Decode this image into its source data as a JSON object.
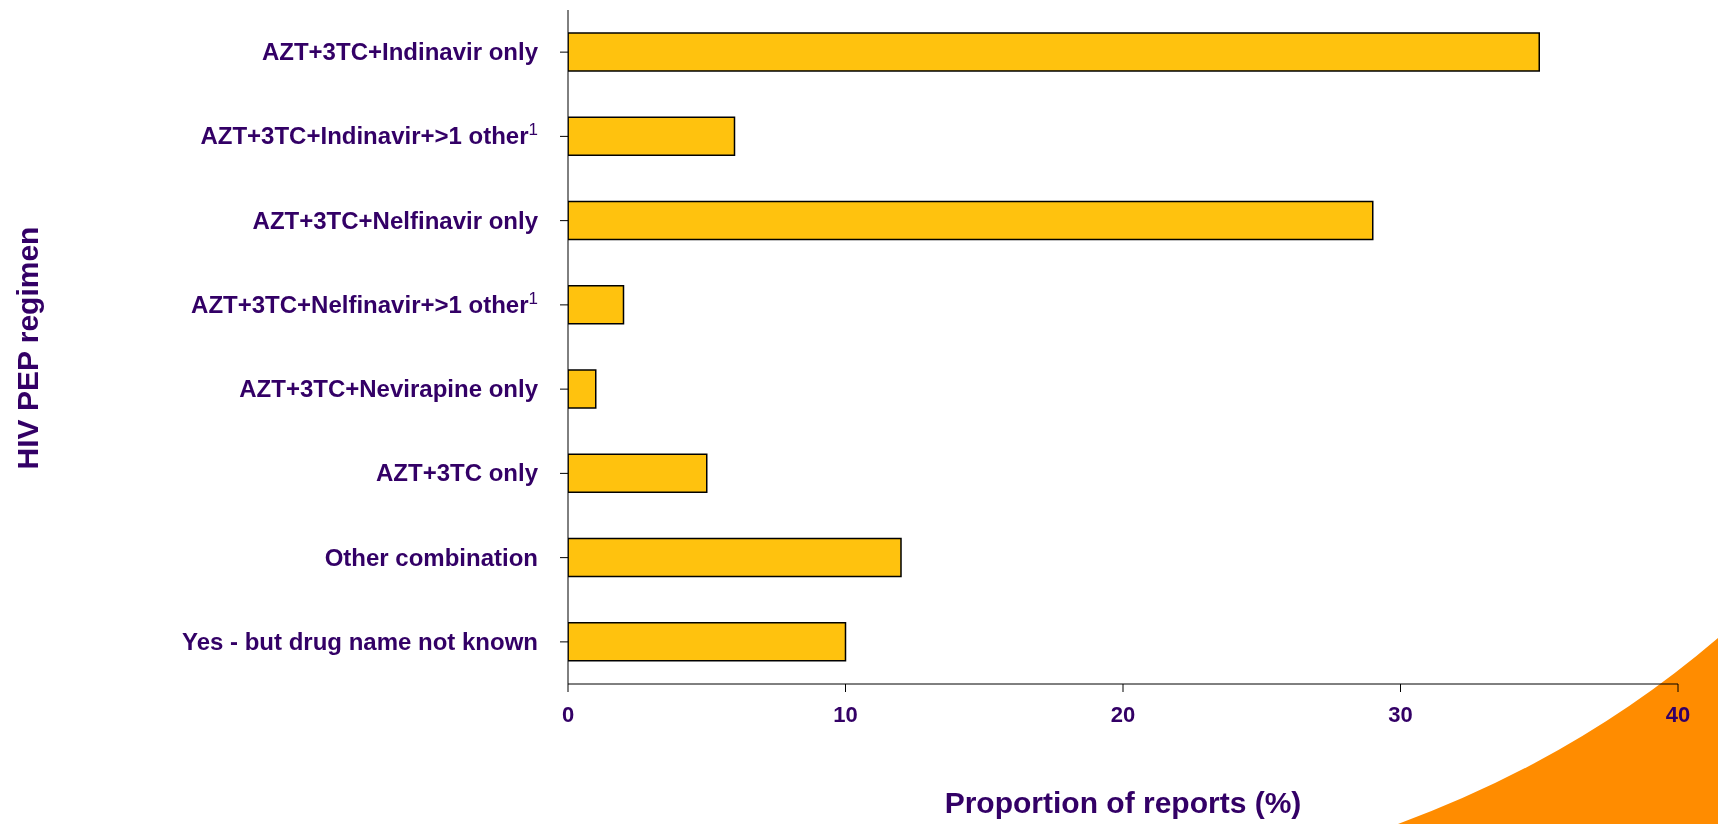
{
  "chart_data": {
    "type": "bar",
    "orientation": "horizontal",
    "categories": [
      "AZT+3TC+Indinavir only",
      "AZT+3TC+Indinavir+>1 other$^{1}$",
      "AZT+3TC+Nelfinavir only",
      "AZT+3TC+Nelfinavir+>1 other$^{1}$",
      "AZT+3TC+Nevirapine only",
      "AZT+3TC only",
      "Other combination",
      "Yes - but drug name not known"
    ],
    "values": [
      35,
      6,
      29,
      2,
      1,
      5,
      12,
      10
    ],
    "color": "#ffc20e",
    "xlim": [
      0,
      40
    ],
    "xticks": [
      0,
      10,
      20,
      30,
      40
    ],
    "xlabel": "Proportion of reports (%)",
    "ylabel": "HIV PEP regimen",
    "grid": false,
    "legend": false
  }
}
